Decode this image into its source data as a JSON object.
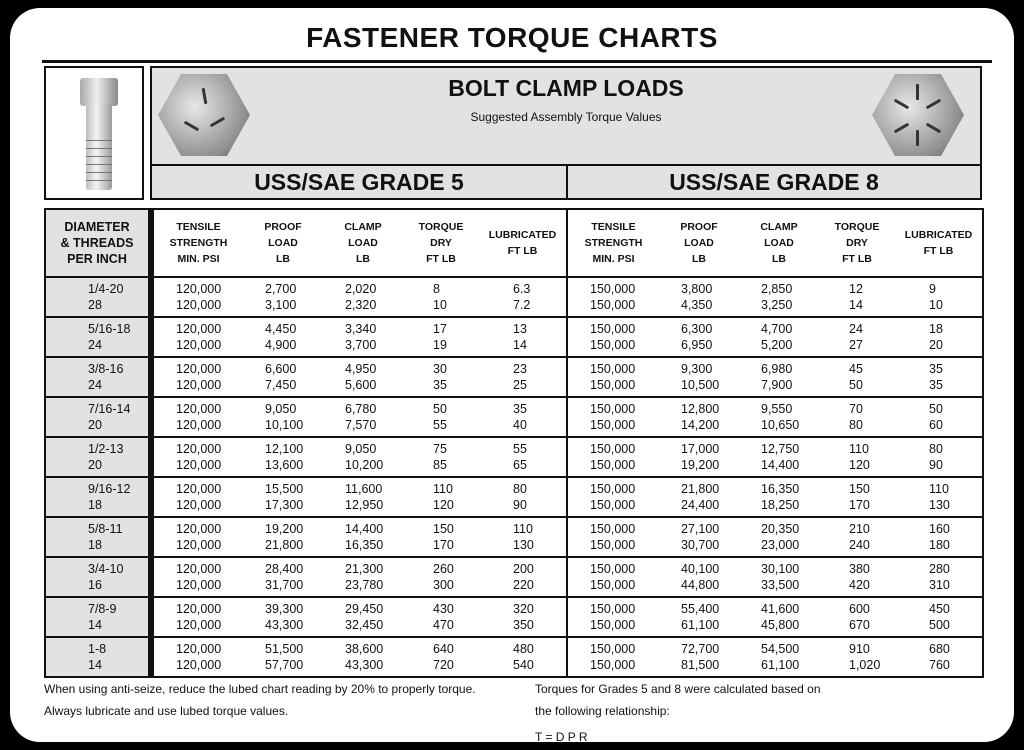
{
  "title": "FASTENER TORQUE CHARTS",
  "header": {
    "heading": "BOLT CLAMP LOADS",
    "subheading": "Suggested Assembly Torque Values"
  },
  "grades": [
    "USS/SAE GRADE 5",
    "USS/SAE GRADE 8"
  ],
  "columns": {
    "diameter": [
      "DIAMETER",
      "& THREADS",
      "PER INCH"
    ],
    "tensile": [
      "TENSILE",
      "STRENGTH",
      "MIN. PSI"
    ],
    "proof": [
      "PROOF",
      "LOAD",
      "LB"
    ],
    "clamp": [
      "CLAMP",
      "LOAD",
      "LB"
    ],
    "torque": [
      "TORQUE",
      "DRY",
      "FT LB"
    ],
    "lube": [
      "LUBRICATED",
      "FT LB"
    ]
  },
  "rows": [
    {
      "d": [
        "1/4-20",
        "28"
      ],
      "g5": [
        [
          "120,000",
          "2,700",
          "2,020",
          "8",
          "6.3"
        ],
        [
          "120,000",
          "3,100",
          "2,320",
          "10",
          "7.2"
        ]
      ],
      "g8": [
        [
          "150,000",
          "3,800",
          "2,850",
          "12",
          "9"
        ],
        [
          "150,000",
          "4,350",
          "3,250",
          "14",
          "10"
        ]
      ]
    },
    {
      "d": [
        "5/16-18",
        "24"
      ],
      "g5": [
        [
          "120,000",
          "4,450",
          "3,340",
          "17",
          "13"
        ],
        [
          "120,000",
          "4,900",
          "3,700",
          "19",
          "14"
        ]
      ],
      "g8": [
        [
          "150,000",
          "6,300",
          "4,700",
          "24",
          "18"
        ],
        [
          "150,000",
          "6,950",
          "5,200",
          "27",
          "20"
        ]
      ]
    },
    {
      "d": [
        "3/8-16",
        "24"
      ],
      "g5": [
        [
          "120,000",
          "6,600",
          "4,950",
          "30",
          "23"
        ],
        [
          "120,000",
          "7,450",
          "5,600",
          "35",
          "25"
        ]
      ],
      "g8": [
        [
          "150,000",
          "9,300",
          "6,980",
          "45",
          "35"
        ],
        [
          "150,000",
          "10,500",
          "7,900",
          "50",
          "35"
        ]
      ]
    },
    {
      "d": [
        "7/16-14",
        "20"
      ],
      "g5": [
        [
          "120,000",
          "9,050",
          "6,780",
          "50",
          "35"
        ],
        [
          "120,000",
          "10,100",
          "7,570",
          "55",
          "40"
        ]
      ],
      "g8": [
        [
          "150,000",
          "12,800",
          "9,550",
          "70",
          "50"
        ],
        [
          "150,000",
          "14,200",
          "10,650",
          "80",
          "60"
        ]
      ]
    },
    {
      "d": [
        "1/2-13",
        "20"
      ],
      "g5": [
        [
          "120,000",
          "12,100",
          "9,050",
          "75",
          "55"
        ],
        [
          "120,000",
          "13,600",
          "10,200",
          "85",
          "65"
        ]
      ],
      "g8": [
        [
          "150,000",
          "17,000",
          "12,750",
          "110",
          "80"
        ],
        [
          "150,000",
          "19,200",
          "14,400",
          "120",
          "90"
        ]
      ]
    },
    {
      "d": [
        "9/16-12",
        "18"
      ],
      "g5": [
        [
          "120,000",
          "15,500",
          "11,600",
          "110",
          "80"
        ],
        [
          "120,000",
          "17,300",
          "12,950",
          "120",
          "90"
        ]
      ],
      "g8": [
        [
          "150,000",
          "21,800",
          "16,350",
          "150",
          "110"
        ],
        [
          "150,000",
          "24,400",
          "18,250",
          "170",
          "130"
        ]
      ]
    },
    {
      "d": [
        "5/8-11",
        "18"
      ],
      "g5": [
        [
          "120,000",
          "19,200",
          "14,400",
          "150",
          "110"
        ],
        [
          "120,000",
          "21,800",
          "16,350",
          "170",
          "130"
        ]
      ],
      "g8": [
        [
          "150,000",
          "27,100",
          "20,350",
          "210",
          "160"
        ],
        [
          "150,000",
          "30,700",
          "23,000",
          "240",
          "180"
        ]
      ]
    },
    {
      "d": [
        "3/4-10",
        "16"
      ],
      "g5": [
        [
          "120,000",
          "28,400",
          "21,300",
          "260",
          "200"
        ],
        [
          "120,000",
          "31,700",
          "23,780",
          "300",
          "220"
        ]
      ],
      "g8": [
        [
          "150,000",
          "40,100",
          "30,100",
          "380",
          "280"
        ],
        [
          "150,000",
          "44,800",
          "33,500",
          "420",
          "310"
        ]
      ]
    },
    {
      "d": [
        "7/8-9",
        "14"
      ],
      "g5": [
        [
          "120,000",
          "39,300",
          "29,450",
          "430",
          "320"
        ],
        [
          "120,000",
          "43,300",
          "32,450",
          "470",
          "350"
        ]
      ],
      "g8": [
        [
          "150,000",
          "55,400",
          "41,600",
          "600",
          "450"
        ],
        [
          "150,000",
          "61,100",
          "45,800",
          "670",
          "500"
        ]
      ]
    },
    {
      "d": [
        "1-8",
        "14"
      ],
      "g5": [
        [
          "120,000",
          "51,500",
          "38,600",
          "640",
          "480"
        ],
        [
          "120,000",
          "57,700",
          "43,300",
          "720",
          "540"
        ]
      ],
      "g8": [
        [
          "150,000",
          "72,700",
          "54,500",
          "910",
          "680"
        ],
        [
          "150,000",
          "81,500",
          "61,100",
          "1,020",
          "760"
        ]
      ]
    }
  ],
  "notes": {
    "left": [
      "When using anti-seize, reduce the lubed chart reading by 20% to properly torque.",
      "Always lubricate and use lubed torque values."
    ],
    "right": [
      "Torques for Grades 5 and 8 were calculated based on",
      "the following relationship:"
    ],
    "cut": "T = D P R"
  }
}
